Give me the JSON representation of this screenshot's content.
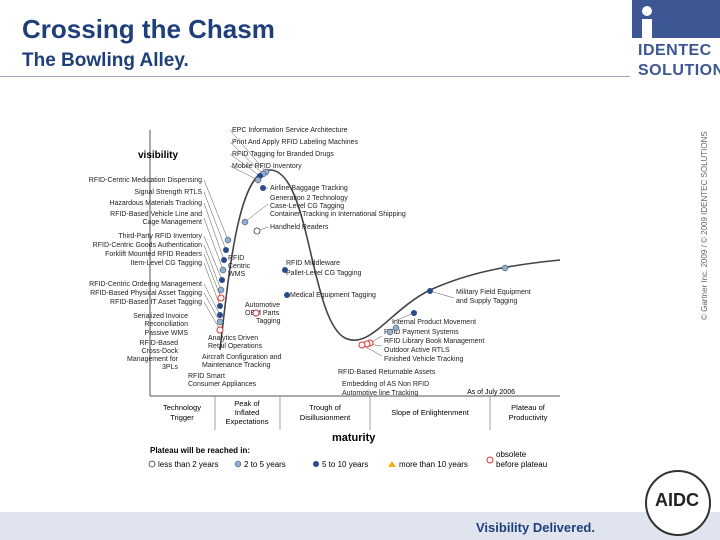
{
  "header": {
    "title": "Crossing the Chasm",
    "subtitle": "The Bowling Alley."
  },
  "logo": {
    "line1": "IDENTEC",
    "line2": "SOLUTIONS"
  },
  "copyright": "© Gartner Inc. 2009 / © 2009 IDENTEC SOLUTIONS",
  "footer": {
    "tagline": "Visibility Delivered.",
    "badge": "AIDC"
  },
  "hype": {
    "axis_y": "visibility",
    "axis_x": "maturity",
    "as_of": "As of July 2006",
    "phases": [
      {
        "l1": "Technology",
        "l2": "Trigger",
        "l3": ""
      },
      {
        "l1": "Peak of",
        "l2": "Inflated",
        "l3": "Expectations"
      },
      {
        "l1": "Trough of",
        "l2": "Disillusionment",
        "l3": ""
      },
      {
        "l1": "Slope of Enlightenment",
        "l2": "",
        "l3": ""
      },
      {
        "l1": "Plateau of",
        "l2": "Productivity",
        "l3": ""
      }
    ],
    "legend_title": "Plateau will be reached in:",
    "legend": [
      {
        "label": "less than 2 years",
        "symbol": "open-circle",
        "color": "#ffffff"
      },
      {
        "label": "2 to 5 years",
        "symbol": "light-dot",
        "color": "#8fb0d6"
      },
      {
        "label": "5 to 10 years",
        "symbol": "dark-dot",
        "color": "#2b4a8a"
      },
      {
        "label": "more than 10 years",
        "symbol": "triangle",
        "color": "#f0b020"
      },
      {
        "label": "obsolete before plateau",
        "symbol": "x-circle",
        "color": "#d33"
      }
    ],
    "labels": {
      "top1": "EPC Information Service Architecture",
      "top2": "Print And Apply RFID Labeling Machines",
      "top3": "RFID Tagging for Branded Drugs",
      "top4": "Mobile RFID Inventory",
      "l1": "RFID-Centric Medication Dispensing",
      "l2": "Signal Strength RTLS",
      "l3": "Hazardous Materials Tracking",
      "l4": "RFID-Based Vehicle Line and",
      "l5": "Cage Management",
      "l6": "Third-Party RFID Inventory",
      "l7": "RFID-Centric Goods Authentication",
      "l8": "Forklift Mounted RFID Readers",
      "l9": "Item-Level CG Tagging",
      "l10": "RFID-Centric Ordering Management",
      "l11": "RFID-Based Physical Asset Tagging",
      "l12": "RFID-Based IT Asset Tagging",
      "l13": "Serialized Invoice",
      "l14": "Reconciliation",
      "l15": "Passive WMS",
      "l16": "RFID-Based",
      "l17": "Cross-Dock",
      "l18": "Management for",
      "l19": "3PLs",
      "r1": "Airline Baggage Tracking",
      "r2": "Generation 2 Technology",
      "r3": "Case-Level CG Tagging",
      "r4": "Container Tracking in International Shipping",
      "r5": "Handheld Readers",
      "r6": "RFID",
      "r7": "Centric",
      "r8": "WMS",
      "r9": "RFID Middleware",
      "r10": "Pallet-Level CG Tagging",
      "r11": "Medical Equipment Tagging",
      "r12": "Automotive",
      "r13": "OEM Parts",
      "r14": "Tagging",
      "r15": "Analytics Driven",
      "r16": "Retail Operations",
      "r17": "Aircraft Configuration and",
      "r18": "Maintenance Tracking",
      "r19": "RFID Smart",
      "r20": "Consumer Appliances",
      "r21": "Military Field Equipment",
      "r22": "and Supply Tagging",
      "r23": "Internal Product Movement",
      "r24": "RFID Payment Systems",
      "r25": "RFID Library Book Management",
      "r26": "Outdoor Active RTLS",
      "r27": "Finished Vehicle Tracking",
      "r28": "RFID-Based Returnable Assets",
      "r29": "Embedding of AS Non RFID",
      "r30": "Automotive line Tracking"
    }
  }
}
